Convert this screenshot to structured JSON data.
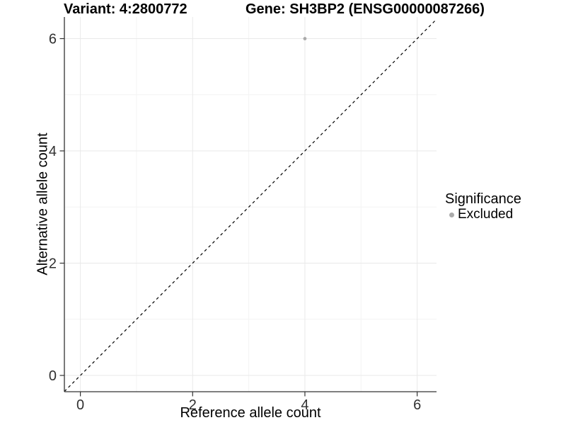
{
  "header": {
    "variant_title": "Variant: 4:2800772",
    "gene_title": "Gene: SH3BP2 (ENSG00000087266)"
  },
  "chart_data": {
    "type": "scatter",
    "title": "Variant: 4:2800772   Gene: SH3BP2 (ENSG00000087266)",
    "xlabel": "Reference allele count",
    "ylabel": "Alternative allele count",
    "xlim": [
      -0.285,
      6.345
    ],
    "ylim": [
      -0.29,
      6.385
    ],
    "x_breaks": [
      0,
      2,
      4,
      6
    ],
    "y_breaks": [
      0,
      2,
      4,
      6
    ],
    "x_minor_breaks": [
      1,
      3,
      5
    ],
    "y_minor_breaks": [
      1,
      3,
      5
    ],
    "grid": true,
    "points": [
      {
        "x": 4,
        "y": 6,
        "series": "Excluded"
      }
    ],
    "identity_line": {
      "style": "dashed",
      "slope": 1,
      "intercept": 0,
      "color": "#000000"
    },
    "legend": {
      "title": "Significance",
      "position": "right",
      "items": [
        {
          "label": "Excluded",
          "color": "#aaaaaa"
        }
      ]
    },
    "style": {
      "background": "#ffffff",
      "point_color": "#aaaaaa",
      "axis_line_color": "#333333",
      "tick_label_color": "#303030",
      "grid_major_color": "#e9e9e9",
      "grid_minor_color": "#f4f4f4"
    }
  }
}
